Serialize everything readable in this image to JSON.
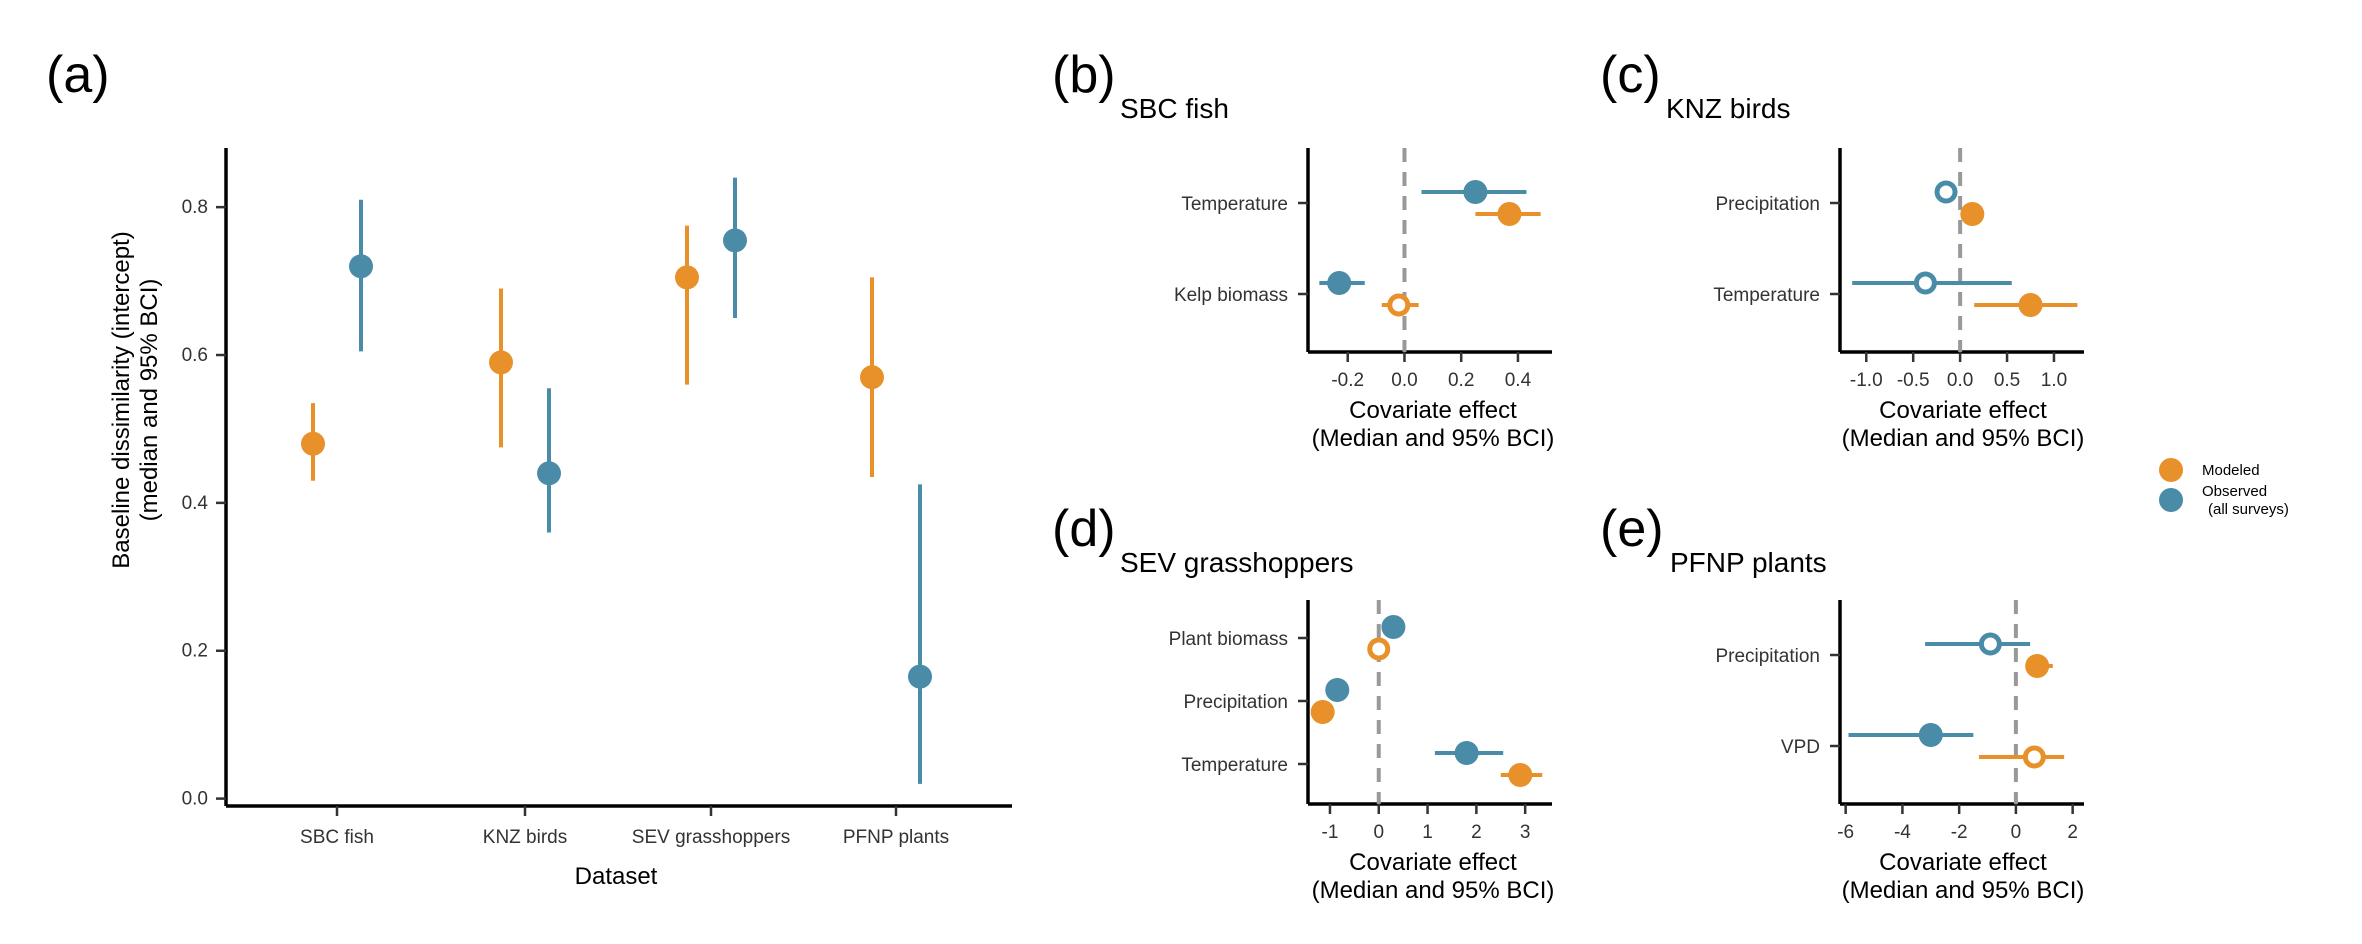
{
  "colors": {
    "modeled": "#E8902A",
    "observed": "#4A8BA7"
  },
  "legend": {
    "modeled": "Modeled",
    "observed_line1": "Observed",
    "observed_line2": "(all surveys)"
  },
  "chart_data": [
    {
      "id": "a",
      "panel_label": "(a)",
      "type": "scatter",
      "subtitle": "",
      "xlabel": "Dataset",
      "ylabel": "Baseline dissimilarity (intercept)",
      "ylabel2": "(median and 95% BCI)",
      "categories": [
        "SBC fish",
        "KNZ birds",
        "SEV grasshoppers",
        "PFNP plants"
      ],
      "ylim": [
        -0.01,
        0.88
      ],
      "yticks": [
        "0.0",
        "0.2",
        "0.4",
        "0.6",
        "0.8"
      ],
      "series": [
        {
          "name": "Modeled",
          "key": "modeled",
          "median": [
            0.48,
            0.59,
            0.705,
            0.57
          ],
          "low": [
            0.43,
            0.475,
            0.56,
            0.435
          ],
          "high": [
            0.535,
            0.69,
            0.775,
            0.705
          ]
        },
        {
          "name": "Observed (all surveys)",
          "key": "observed",
          "median": [
            0.72,
            0.44,
            0.755,
            0.165
          ],
          "low": [
            0.605,
            0.36,
            0.65,
            0.02
          ],
          "high": [
            0.81,
            0.555,
            0.84,
            0.425
          ]
        }
      ]
    },
    {
      "id": "b",
      "panel_label": "(b)",
      "type": "scatter",
      "subtitle": "SBC fish",
      "xlabel": "Covariate effect",
      "xlabel2": "(Median and 95% BCI)",
      "categories": [
        "Temperature",
        "Kelp biomass"
      ],
      "xlim": [
        -0.34,
        0.52
      ],
      "xticks": [
        "-0.2",
        "0.0",
        "0.2",
        "0.4"
      ],
      "xtick_values": [
        -0.2,
        0,
        0.2,
        0.4
      ],
      "points": [
        {
          "series": "observed",
          "cat": 0,
          "median": 0.25,
          "low": 0.06,
          "high": 0.43,
          "filled": true
        },
        {
          "series": "modeled",
          "cat": 0,
          "median": 0.37,
          "low": 0.25,
          "high": 0.48,
          "filled": true
        },
        {
          "series": "observed",
          "cat": 1,
          "median": -0.23,
          "low": -0.3,
          "high": -0.14,
          "filled": true
        },
        {
          "series": "modeled",
          "cat": 1,
          "median": -0.02,
          "low": -0.08,
          "high": 0.05,
          "filled": false
        }
      ]
    },
    {
      "id": "c",
      "panel_label": "(c)",
      "type": "scatter",
      "subtitle": "KNZ birds",
      "xlabel": "Covariate effect",
      "xlabel2": "(Median and 95% BCI)",
      "categories": [
        "Precipitation",
        "Temperature"
      ],
      "xlim": [
        -1.28,
        1.32
      ],
      "xticks": [
        "-1.0",
        "-0.5",
        "0.0",
        "0.5",
        "1.0"
      ],
      "xtick_values": [
        -1.0,
        -0.5,
        0,
        0.5,
        1.0
      ],
      "points": [
        {
          "series": "observed",
          "cat": 0,
          "median": -0.15,
          "low": -0.22,
          "high": -0.08,
          "filled": false
        },
        {
          "series": "modeled",
          "cat": 0,
          "median": 0.13,
          "low": 0.06,
          "high": 0.2,
          "filled": true
        },
        {
          "series": "observed",
          "cat": 1,
          "median": -0.37,
          "low": -1.15,
          "high": 0.55,
          "filled": false
        },
        {
          "series": "modeled",
          "cat": 1,
          "median": 0.75,
          "low": 0.15,
          "high": 1.25,
          "filled": true
        }
      ]
    },
    {
      "id": "d",
      "panel_label": "(d)",
      "type": "scatter",
      "subtitle": "SEV grasshoppers",
      "xlabel": "Covariate effect",
      "xlabel2": "(Median and 95% BCI)",
      "categories": [
        "Plant biomass",
        "Precipitation",
        "Temperature"
      ],
      "xlim": [
        -1.45,
        3.55
      ],
      "xticks": [
        "-1",
        "0",
        "1",
        "2",
        "3"
      ],
      "xtick_values": [
        -1,
        0,
        1,
        2,
        3
      ],
      "points": [
        {
          "series": "observed",
          "cat": 0,
          "median": 0.3,
          "low": 0.2,
          "high": 0.4,
          "filled": true
        },
        {
          "series": "modeled",
          "cat": 0,
          "median": 0.0,
          "low": -0.15,
          "high": 0.15,
          "filled": false
        },
        {
          "series": "observed",
          "cat": 1,
          "median": -0.85,
          "low": -0.95,
          "high": -0.75,
          "filled": true
        },
        {
          "series": "modeled",
          "cat": 1,
          "median": -1.15,
          "low": -1.25,
          "high": -1.05,
          "filled": true
        },
        {
          "series": "observed",
          "cat": 2,
          "median": 1.8,
          "low": 1.15,
          "high": 2.55,
          "filled": true
        },
        {
          "series": "modeled",
          "cat": 2,
          "median": 2.9,
          "low": 2.5,
          "high": 3.35,
          "filled": true
        }
      ]
    },
    {
      "id": "e",
      "panel_label": "(e)",
      "type": "scatter",
      "subtitle": "PFNP plants",
      "xlabel": "Covariate effect",
      "xlabel2": "(Median and 95% BCI)",
      "categories": [
        "Precipitation",
        "VPD"
      ],
      "xlim": [
        -6.2,
        2.4
      ],
      "xticks": [
        "-6",
        "-4",
        "-2",
        "0",
        "2"
      ],
      "xtick_values": [
        -6,
        -4,
        -2,
        0,
        2
      ],
      "points": [
        {
          "series": "observed",
          "cat": 0,
          "median": -0.9,
          "low": -3.2,
          "high": 0.5,
          "filled": false
        },
        {
          "series": "modeled",
          "cat": 0,
          "median": 0.75,
          "low": 0.4,
          "high": 1.3,
          "filled": true
        },
        {
          "series": "observed",
          "cat": 1,
          "median": -3.0,
          "low": -5.9,
          "high": -1.5,
          "filled": true
        },
        {
          "series": "modeled",
          "cat": 1,
          "median": 0.65,
          "low": -1.3,
          "high": 1.7,
          "filled": false
        }
      ]
    }
  ]
}
